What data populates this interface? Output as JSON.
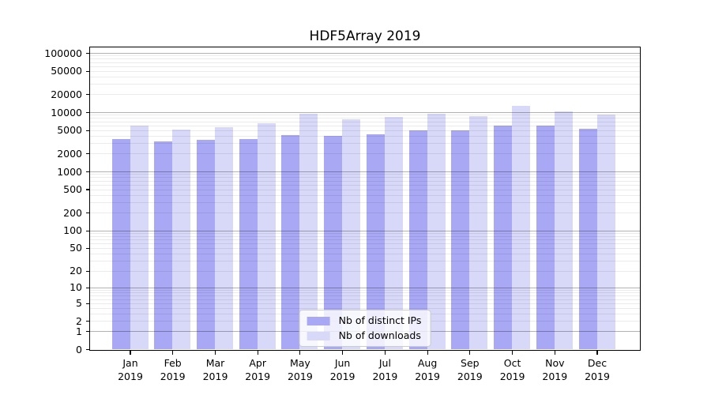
{
  "chart_data": {
    "type": "bar",
    "title": "HDF5Array 2019",
    "x": [
      "Jan",
      "Feb",
      "Mar",
      "Apr",
      "May",
      "Jun",
      "Jul",
      "Aug",
      "Sep",
      "Oct",
      "Nov",
      "Dec"
    ],
    "x_year": "2019",
    "series": [
      {
        "name": "Nb of distinct IPs",
        "color": "#a8a8f4",
        "values": [
          3500,
          3250,
          3400,
          3550,
          4150,
          3950,
          4200,
          4900,
          4950,
          5900,
          5950,
          5250
        ]
      },
      {
        "name": "Nb of downloads",
        "color": "#d8d8f9",
        "values": [
          5900,
          5150,
          5650,
          6500,
          9550,
          7500,
          8250,
          9550,
          8550,
          12700,
          10300,
          9050
        ]
      }
    ],
    "yscale": "log10(1+x)",
    "y_ticks": [
      0,
      1,
      2,
      5,
      10,
      20,
      50,
      100,
      200,
      500,
      1000,
      2000,
      5000,
      10000,
      20000,
      50000,
      100000
    ],
    "ylim": [
      0,
      128000
    ],
    "xlabel": "",
    "ylabel": "",
    "grid": {
      "major": true,
      "minor": true
    },
    "legend": {
      "position": "lower center"
    }
  }
}
